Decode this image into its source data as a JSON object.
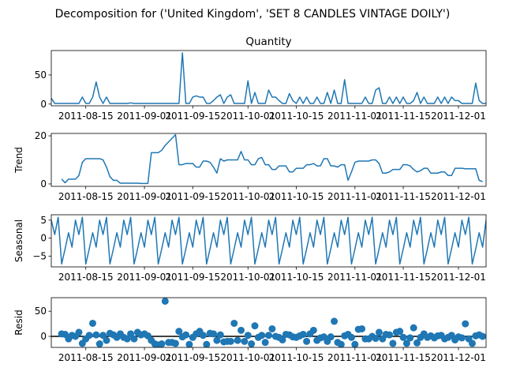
{
  "figure": {
    "suptitle": "Decomposition for ('United Kingdom', 'SET 8 CANDLES VINTAGE DOILY')",
    "line_color": "#1f77b4",
    "marker_color": "#1f77b4",
    "zero_line_color": "#000000"
  },
  "x_ticks": [
    "2011-08-15",
    "2011-09-01",
    "2011-09-15",
    "2011-10-01",
    "2011-10-15",
    "2011-11-01",
    "2011-11-15",
    "2011-12-01"
  ],
  "chart_data": [
    {
      "type": "line",
      "title": "Quantity",
      "ylabel": "",
      "xlim": [
        "2011-08-05",
        "2011-12-09"
      ],
      "ylim": [
        -3,
        92
      ],
      "yticks": [
        0,
        50
      ],
      "x_start": "2011-08-05",
      "values": [
        10,
        1,
        1,
        1,
        1,
        1,
        1,
        1,
        1,
        12,
        1,
        1,
        12,
        38,
        12,
        1,
        12,
        1,
        1,
        1,
        1,
        1,
        1,
        2,
        1,
        1,
        1,
        1,
        1,
        1,
        1,
        1,
        1,
        1,
        1,
        1,
        1,
        1,
        88,
        1,
        1,
        12,
        14,
        12,
        12,
        1,
        1,
        6,
        12,
        16,
        1,
        12,
        16,
        1,
        1,
        1,
        1,
        40,
        1,
        20,
        1,
        1,
        1,
        24,
        12,
        12,
        6,
        1,
        1,
        18,
        6,
        1,
        12,
        1,
        12,
        1,
        1,
        12,
        1,
        1,
        20,
        1,
        24,
        1,
        1,
        42,
        1,
        1,
        1,
        1,
        1,
        12,
        1,
        1,
        24,
        28,
        1,
        1,
        12,
        1,
        12,
        1,
        12,
        1,
        1,
        6,
        20,
        1,
        12,
        1,
        1,
        1,
        12,
        1,
        12,
        1,
        12,
        6,
        6,
        1,
        1,
        1,
        1,
        36,
        6,
        1,
        1,
        1,
        1,
        1,
        1,
        3,
        3
      ]
    },
    {
      "type": "line",
      "title": "",
      "ylabel": "Trend",
      "xlim": [
        "2011-08-05",
        "2011-12-09"
      ],
      "ylim": [
        -1,
        21
      ],
      "yticks": [
        0,
        20
      ],
      "x_start": "2011-08-08",
      "values": [
        2,
        0.5,
        2,
        2,
        2,
        3.5,
        9,
        10.5,
        10.5,
        10.5,
        10.5,
        10.5,
        10,
        7,
        3,
        1.5,
        1.5,
        0.3,
        0.3,
        0.3,
        0.3,
        0.3,
        0.3,
        0.2,
        0.2,
        0.2,
        13,
        13,
        13,
        14,
        16,
        17.5,
        19,
        20.5,
        8,
        8,
        8.5,
        8.5,
        8.5,
        7,
        7,
        9.5,
        9.5,
        9,
        7,
        4.5,
        10.5,
        9.5,
        10,
        10,
        10,
        10,
        13.5,
        10,
        10,
        8,
        8,
        10.5,
        11,
        8,
        8,
        6,
        6,
        7.5,
        7.5,
        7.5,
        5,
        5,
        6.5,
        6.5,
        6.5,
        8,
        8,
        8.5,
        7.5,
        7.5,
        10.5,
        10.5,
        7.5,
        7.5,
        7,
        8,
        8,
        1.5,
        5,
        9,
        9.5,
        9.5,
        9.5,
        9.5,
        10,
        10,
        8.5,
        4.5,
        4.5,
        5,
        6,
        6,
        6,
        8,
        8,
        7.5,
        6,
        5,
        5.5,
        6.5,
        6.5,
        4.5,
        4.5,
        4.5,
        5,
        5,
        3.5,
        3.5,
        6.5,
        6.5,
        6.5,
        6.3,
        6.3,
        6.3,
        6.3,
        1.5,
        1
      ]
    },
    {
      "type": "line",
      "title": "",
      "ylabel": "Seasonal",
      "xlim": [
        "2011-08-05",
        "2011-12-09"
      ],
      "ylim": [
        -8,
        6.5
      ],
      "yticks": [
        -5,
        0,
        5
      ],
      "x_start": "2011-08-05",
      "pattern": [
        5,
        1,
        5.8,
        -7.2,
        -3,
        1.5,
        -2.5
      ],
      "n": 127
    },
    {
      "type": "scatter",
      "title": "",
      "ylabel": "Resid",
      "xlim": [
        "2011-08-05",
        "2011-12-09"
      ],
      "ylim": [
        -22,
        77
      ],
      "yticks": [
        0,
        50
      ],
      "x_start": "2011-08-08",
      "values": [
        5,
        4,
        -5,
        2,
        0,
        8,
        -14,
        -5,
        2,
        26,
        3,
        -15,
        2,
        -8,
        6,
        3,
        -2,
        5,
        -2,
        -5,
        5,
        -5,
        8,
        3,
        5,
        1,
        -8,
        -15,
        -17,
        -15,
        70,
        -12,
        -12,
        -14,
        10,
        -1,
        3,
        -16,
        -2,
        5,
        10,
        2,
        -16,
        6,
        5,
        -8,
        3,
        -11,
        -10,
        -10,
        26,
        -8,
        12,
        -10,
        2,
        -15,
        21,
        -2,
        2,
        -12,
        2,
        15,
        0,
        -2,
        -7,
        4,
        3,
        -1,
        -2,
        1,
        4,
        -10,
        5,
        12,
        -8,
        -3,
        -1,
        -10,
        -1,
        30,
        -12,
        -16,
        1,
        4,
        -2,
        -16,
        14,
        15,
        -5,
        -5,
        0,
        -4,
        8,
        -5,
        4,
        3,
        -14,
        8,
        10,
        -2,
        -14,
        -3,
        17,
        -13,
        -2,
        5,
        -2,
        1,
        -3,
        1,
        2,
        -5,
        -2,
        2,
        -7,
        -1,
        -3,
        25,
        -5,
        -14,
        1,
        3,
        0
      ]
    }
  ]
}
